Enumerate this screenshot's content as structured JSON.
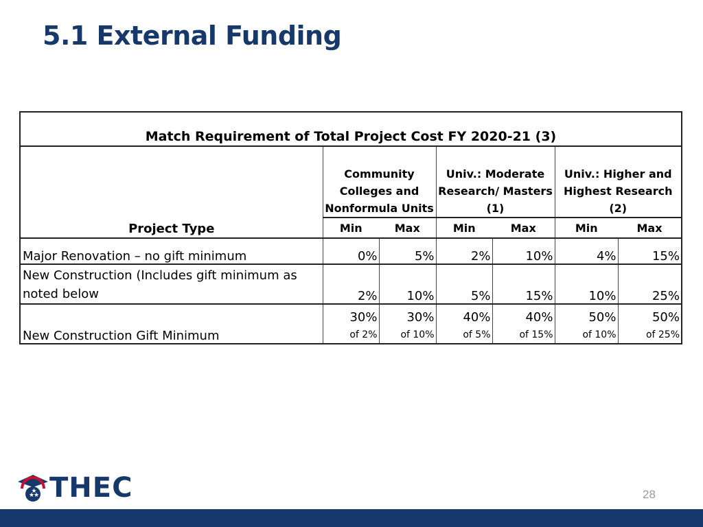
{
  "slide": {
    "title": "5.1 External Funding",
    "page_number": "28",
    "logo_text": "THEC",
    "colors": {
      "title": "#17386b",
      "bottom_bar": "#17386b",
      "logo_red": "#c8102e"
    }
  },
  "table": {
    "title": "Match Requirement of Total Project Cost FY 2020-21 (3)",
    "project_type_label": "Project Type",
    "groups": [
      "Community Colleges and Nonformula Units",
      "Univ.: Moderate Research/ Masters (1)",
      "Univ.: Higher and Highest Research (2)"
    ],
    "min_label": "Min",
    "max_label": "Max",
    "rows": [
      {
        "label": "Major Renovation – no gift minimum",
        "values": [
          "0%",
          "5%",
          "2%",
          "10%",
          "4%",
          "15%"
        ]
      },
      {
        "label": "New Construction (Includes gift minimum as noted below",
        "values": [
          "2%",
          "10%",
          "5%",
          "15%",
          "10%",
          "25%"
        ]
      },
      {
        "label": "New Construction Gift Minimum",
        "values": [
          "30%",
          "30%",
          "40%",
          "40%",
          "50%",
          "50%"
        ],
        "sub_values": [
          "of 2%",
          "of 10%",
          "of 5%",
          "of 15%",
          "of 10%",
          "of 25%"
        ]
      }
    ]
  }
}
